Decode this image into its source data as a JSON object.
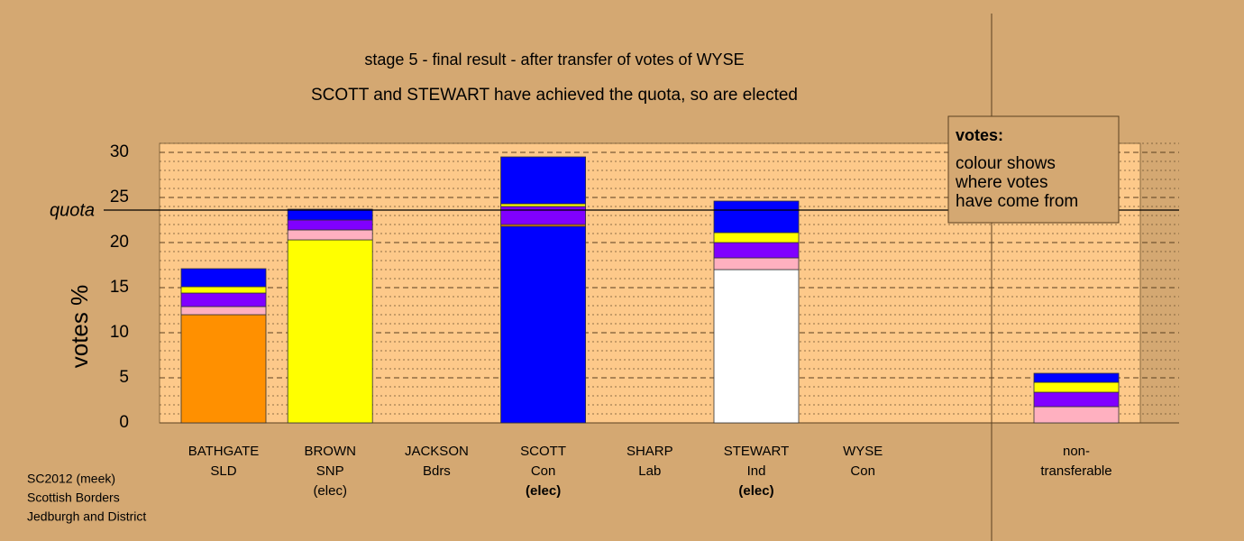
{
  "chart_data": {
    "type": "bar",
    "stacked": true,
    "title": "stage 5 - final result - after transfer of votes of WYSE",
    "subtitle": "SCOTT and STEWART have achieved the quota, so are elected",
    "y_label": "votes %",
    "ylim": [
      0,
      31
    ],
    "yticks": [
      0,
      5,
      10,
      15,
      20,
      25,
      30
    ],
    "minor_yticks": [
      1,
      2,
      3,
      4,
      6,
      7,
      8,
      9,
      11,
      12,
      13,
      14,
      16,
      17,
      18,
      19,
      21,
      22,
      23,
      24,
      26,
      27,
      28,
      29,
      31
    ],
    "grid": true,
    "quota": {
      "label": "quota",
      "value": 23.6
    },
    "categories": [
      {
        "name": "BATHGATE",
        "party": "SLD",
        "segments": [
          {
            "color": "#ff9000",
            "value": 12.0
          },
          {
            "color": "#ffb0c0",
            "value": 0.9
          },
          {
            "color": "#8000ff",
            "value": 1.5
          },
          {
            "color": "#ffff00",
            "value": 0.7
          },
          {
            "color": "#0000ff",
            "value": 2.0
          }
        ]
      },
      {
        "name": "BROWN",
        "party": "SNP",
        "note": "(elec)",
        "segments": [
          {
            "color": "#ffff00",
            "value": 20.3
          },
          {
            "color": "#ffb0c0",
            "value": 1.1
          },
          {
            "color": "#8000ff",
            "value": 1.1
          },
          {
            "color": "#0000ff",
            "value": 1.2
          }
        ]
      },
      {
        "name": "JACKSON",
        "party": "Bdrs",
        "segments": []
      },
      {
        "name": "SCOTT",
        "party": "Con",
        "note": "(elec)",
        "note_bold": true,
        "segments": [
          {
            "color": "#0000ff",
            "value": 21.8
          },
          {
            "color": "#ff9000",
            "value": 0.2
          },
          {
            "color": "#8000ff",
            "value": 2.0
          },
          {
            "color": "#ffff00",
            "value": 0.3
          },
          {
            "color": "#0000ff",
            "value": 5.2
          }
        ]
      },
      {
        "name": "SHARP",
        "party": "Lab",
        "segments": []
      },
      {
        "name": "STEWART",
        "party": "Ind",
        "note": "(elec)",
        "note_bold": true,
        "segments": [
          {
            "color": "#ffffff",
            "value": 17.0
          },
          {
            "color": "#ffb0c0",
            "value": 1.3
          },
          {
            "color": "#8000ff",
            "value": 1.7
          },
          {
            "color": "#ffff00",
            "value": 1.1
          },
          {
            "color": "#0000ff",
            "value": 3.5
          }
        ]
      },
      {
        "name": "WYSE",
        "party": "Con",
        "segments": []
      }
    ],
    "nontransferable": {
      "name": "non-",
      "party": "transferable",
      "segments": [
        {
          "color": "#ffb0c0",
          "value": 1.8
        },
        {
          "color": "#8000ff",
          "value": 1.6
        },
        {
          "color": "#ffff00",
          "value": 1.1
        },
        {
          "color": "#0000ff",
          "value": 1.0
        }
      ]
    },
    "legend": {
      "title": "votes:",
      "lines": [
        "colour shows",
        "where votes",
        "have come from"
      ]
    },
    "footer": [
      "SC2012 (meek)",
      "Scottish Borders",
      "Jedburgh and District"
    ]
  }
}
